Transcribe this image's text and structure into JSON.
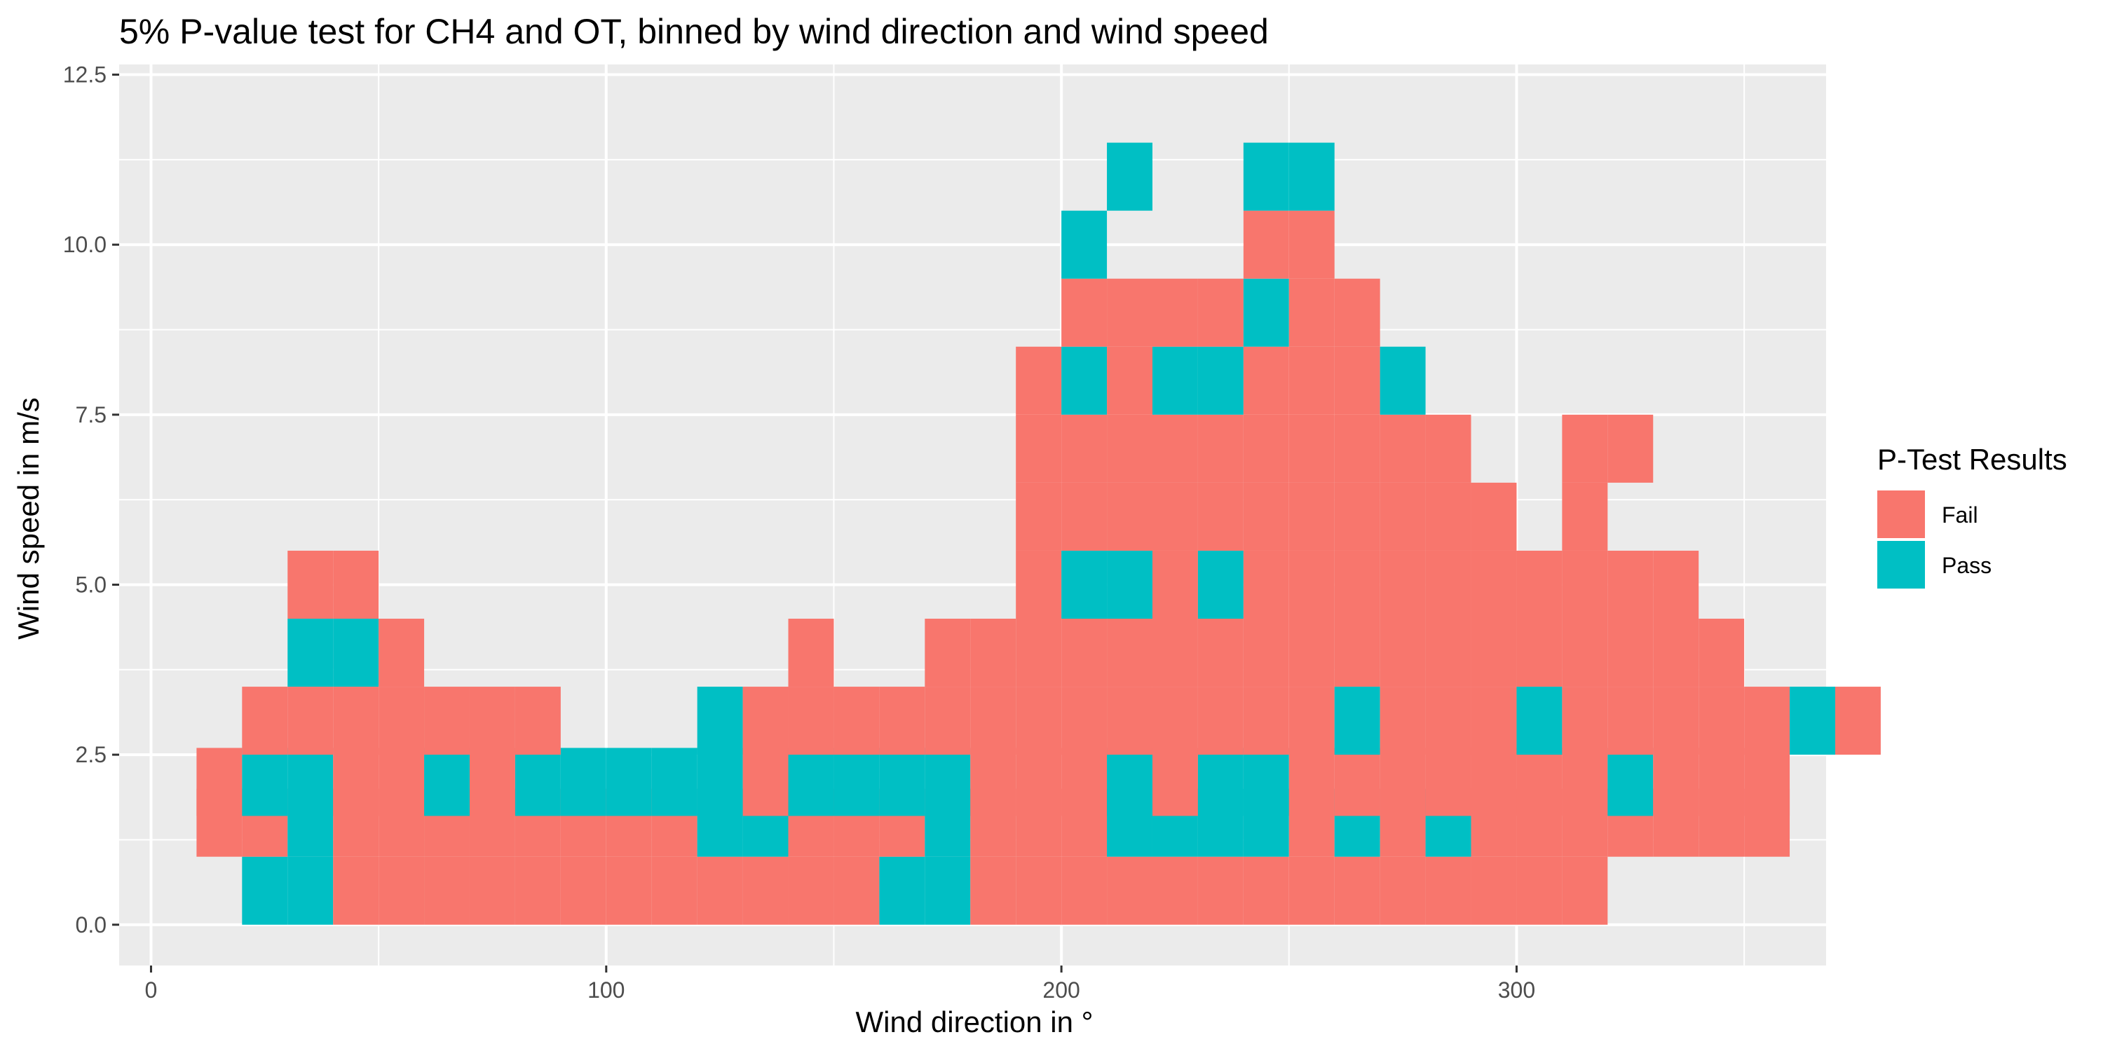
{
  "chart_data": {
    "type": "heatmap",
    "title": "5% P-value test for CH4 and OT, binned by wind direction and wind speed",
    "xlabel": "Wind direction in °",
    "ylabel": "Wind speed in m/s",
    "xlim": [
      -7,
      368
    ],
    "ylim": [
      -0.6,
      12.65
    ],
    "x_ticks": [
      0,
      100,
      200,
      300
    ],
    "y_ticks": [
      0.0,
      2.5,
      5.0,
      7.5,
      10.0,
      12.5
    ],
    "x_tick_labels": [
      "0",
      "100",
      "200",
      "300"
    ],
    "y_tick_labels": [
      "0.0",
      "2.5",
      "5.0",
      "7.5",
      "10.0",
      "12.5"
    ],
    "bin_width_direction": 10,
    "bin_width_speed": 1,
    "grid": true,
    "legend": {
      "title": "P-Test Results",
      "placement": "right",
      "entries": [
        {
          "label": "Fail",
          "color": "#F8766D"
        },
        {
          "label": "Pass",
          "color": "#00BFC4"
        }
      ]
    },
    "colors": {
      "Fail": "#F8766D",
      "Pass": "#00BFC4",
      "panel": "#EBEBEB",
      "grid": "#FFFFFF"
    },
    "rows": [
      {
        "speed_min": 0,
        "cells": "..PPFFFFFFFFFFFFPPFFFFFFFFFFFFFF"
      },
      {
        "speed_min": 1,
        "cells": ".FFPFFFFFFFFPPFFFPFFFPPPPFPFPFFFFFFF"
      },
      {
        "speed_min": 1.6,
        "cells": ".FPPFFPFPPPPPFPPPPFFFPFPPFFFFFFFPFFF"
      },
      {
        "speed_min": 2.5,
        "cells": "..FFFFFFF...PFFFFFFFFFFFFFPFFFPFFFFFPF"
      },
      {
        "speed_min": 3.5,
        "cells": "...PPF........F..FFFFFFFFFFFFFFFFFF"
      },
      {
        "speed_min": 4.5,
        "cells": "...FF..............FPPFPFFFFFFFFFF"
      },
      {
        "speed_min": 5.5,
        "cells": "...................FFFFFFFFFFF.F"
      },
      {
        "speed_min": 6.5,
        "cells": "...................FFFFFFFFFF..FF"
      },
      {
        "speed_min": 7.5,
        "cells": "...................FPFPPFFFP"
      },
      {
        "speed_min": 8.5,
        "cells": "....................FFFFPFF"
      },
      {
        "speed_min": 9.5,
        "cells": "....................P...FF"
      },
      {
        "speed_min": 10.5,
        "cells": ".....................P..PP"
      }
    ]
  }
}
